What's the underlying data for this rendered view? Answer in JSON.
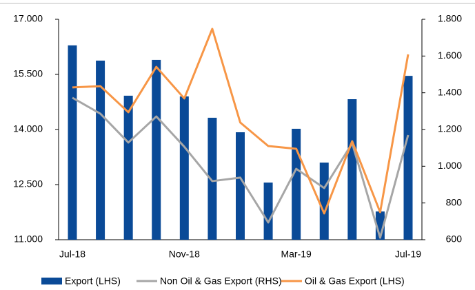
{
  "chart_data": {
    "type": "bar_line",
    "categories": [
      "Jul-18",
      null,
      null,
      null,
      "Nov-18",
      null,
      null,
      null,
      "Mar-19",
      null,
      null,
      null,
      "Jul-19"
    ],
    "series": [
      {
        "name": "Export (LHS)",
        "type": "bar",
        "color": "#0a4a97",
        "values": [
          16290,
          15875,
          14920,
          15895,
          14900,
          14320,
          13925,
          12556,
          14020,
          13100,
          14825,
          11770,
          15460
        ]
      },
      {
        "name": "Non Oil & Gas Export (RHS)",
        "type": "line",
        "axis": "y2",
        "color": "#a6a6a6",
        "values": [
          1373,
          1286,
          1129,
          1271,
          1106,
          919,
          938,
          694,
          986,
          881,
          1125,
          611,
          1170
        ]
      },
      {
        "name": "Oil & Gas Export (LHS)",
        "type": "line",
        "axis": "y2",
        "color": "#f79646",
        "values": [
          1429,
          1436,
          1294,
          1541,
          1369,
          1748,
          1238,
          1110,
          1095,
          743,
          1136,
          750,
          1609
        ]
      }
    ],
    "ylim": [
      11000,
      17000
    ],
    "yticks": [
      {
        "value": 11000,
        "label": "11.000"
      },
      {
        "value": 12500,
        "label": "12.500"
      },
      {
        "value": 14000,
        "label": "14.000"
      },
      {
        "value": 15500,
        "label": "15.500"
      },
      {
        "value": 17000,
        "label": "17.000"
      }
    ],
    "y2lim": [
      600,
      1800
    ],
    "y2ticks": [
      600,
      800,
      {
        "value": 1000,
        "label": "1.000"
      },
      {
        "value": 1200,
        "label": "1.200"
      },
      {
        "value": 1400,
        "label": "1.400"
      },
      {
        "value": 1600,
        "label": "1.600"
      },
      {
        "value": 1800,
        "label": "1.800"
      }
    ],
    "legend": "bottom"
  }
}
